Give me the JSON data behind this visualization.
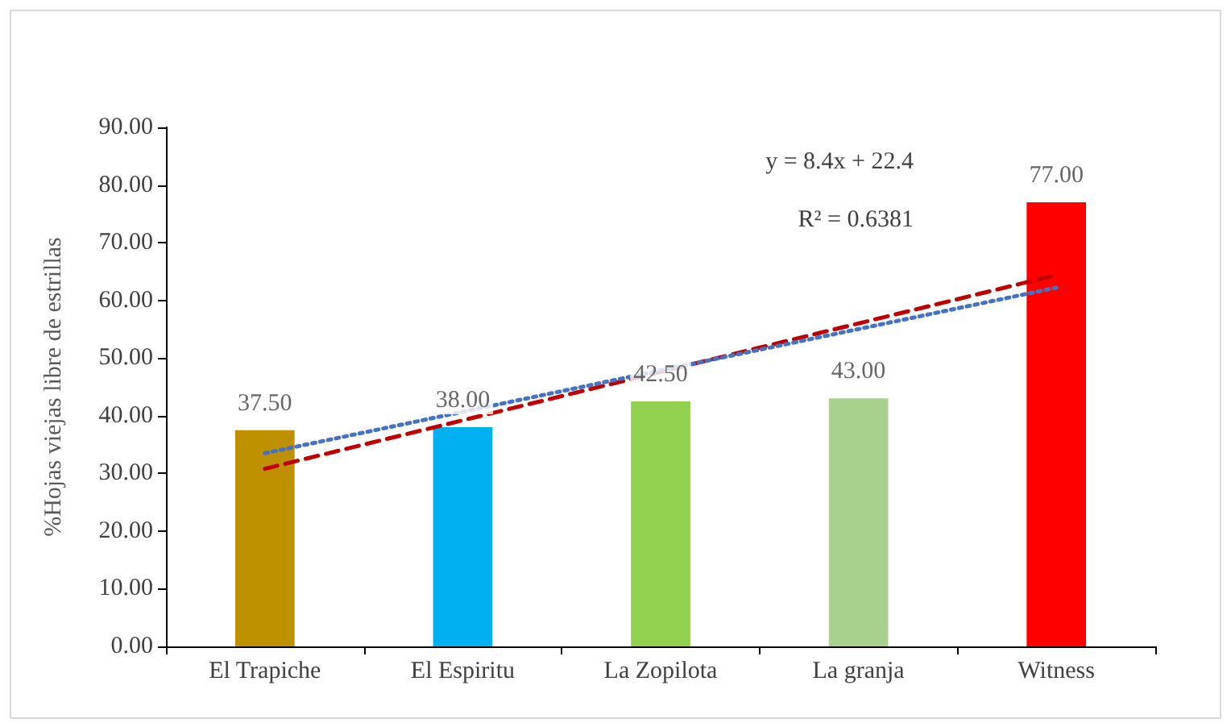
{
  "chart_data": {
    "type": "bar",
    "ylabel": "%Hojas viejas libre de estrillas",
    "categories": [
      "El Trapiche",
      "El Espiritu",
      "La Zopilota",
      "La granja",
      "Witness"
    ],
    "series": [
      {
        "values": [
          37.5,
          38.0,
          42.5,
          43.0,
          77.0
        ],
        "colors": [
          "#bf9000",
          "#00b0f0",
          "#92d050",
          "#a9d18e",
          "#ff0000"
        ],
        "value_labels": [
          "37.50",
          "38.00",
          "42.50",
          "43.00",
          "77.00"
        ]
      },
      {
        "type": "line",
        "x": [
          "El Trapiche",
          "Witness"
        ],
        "values": [
          30.8,
          64.4
        ],
        "color": "#c00000",
        "line_style": "dashed",
        "marker": "none"
      },
      {
        "type": "line",
        "x": [
          "El Trapiche",
          "Witness"
        ],
        "values": [
          33.5,
          62.2
        ],
        "color": "#4472c4",
        "line_style": "dotted",
        "marker": "none"
      }
    ],
    "ylim": [
      0,
      90
    ],
    "yticks": [
      {
        "value": 0,
        "label": "0.00"
      },
      {
        "value": 10,
        "label": "10.00"
      },
      {
        "value": 20,
        "label": "20.00"
      },
      {
        "value": 30,
        "label": "30.00"
      },
      {
        "value": 40,
        "label": "40.00"
      },
      {
        "value": 50,
        "label": "50.00"
      },
      {
        "value": 60,
        "label": "60.00"
      },
      {
        "value": 70,
        "label": "70.00"
      },
      {
        "value": 80,
        "label": "80.00"
      },
      {
        "value": 90,
        "label": "90.00"
      }
    ],
    "annotations": [
      "y = 8.4x + 22.4",
      "R² = 0.6381"
    ],
    "grid": false
  }
}
